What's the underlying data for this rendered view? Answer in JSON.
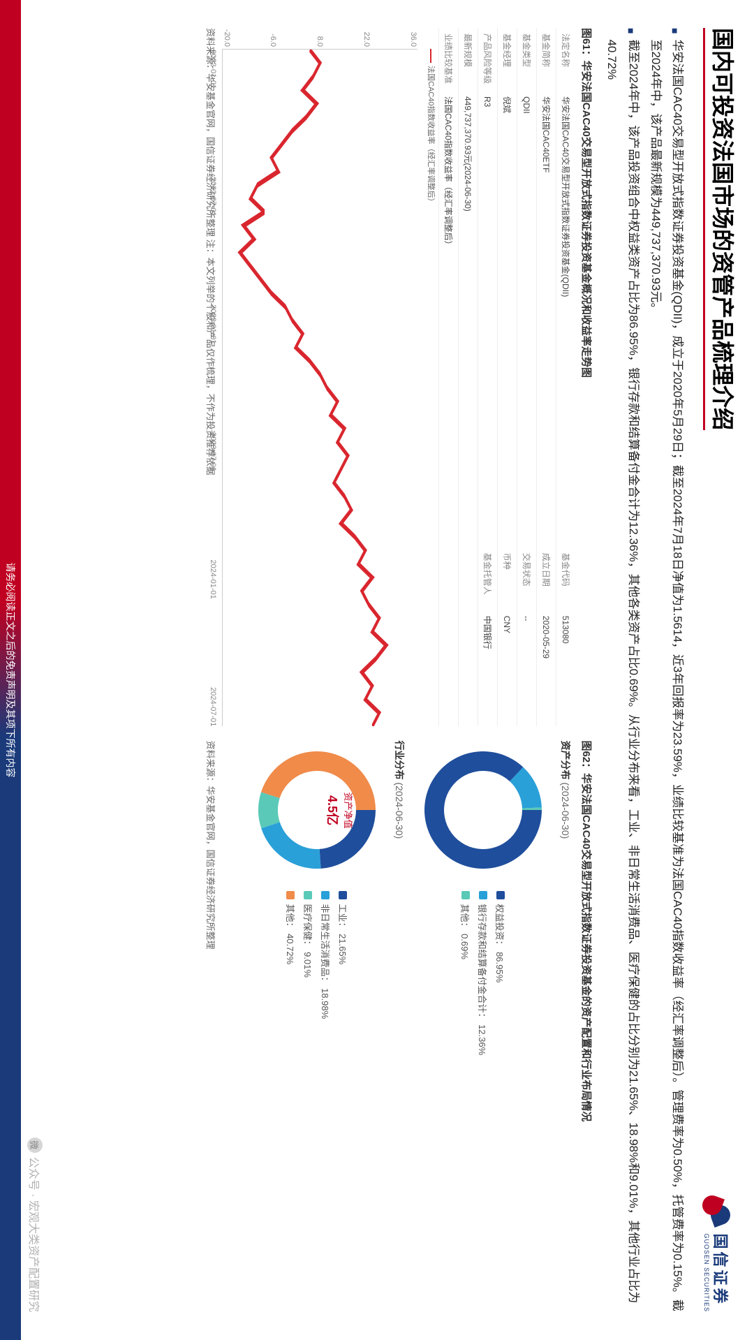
{
  "header": {
    "title": "国内可投资法国市场的资管产品梳理介绍",
    "logo_cn": "国信证券",
    "logo_en": "GUOSEN SECURITIES"
  },
  "bullets": [
    "华安法国CAC40交易型开放式指数证券投资基金(QDII)，成立于2020年5月29日；截至2024年7月18日净值为1.5614，近3年回报率为23.59%，业绩比较基准为法国CAC40指数收益率（经汇率调整后）。管理费率为0.50%，托管费率为0.15%。截至2024年中，该产品最新规模为449,737,370.93元。",
    "截至2024年中，该产品投资组合中权益类资产占比为86.95%，银行存款和结算备付金合计为12.36%，其他各类资产占比0.69%。从行业分布来看，工业、非日常生活消费品、医疗保健的占比分别为21.65%、18.98%和9.01%，其他行业占比为40.72%"
  ],
  "left_panel": {
    "title": "图61：华安法国CAC40交易型开放式指数证券投资基金概况和收益率走势图",
    "table": [
      {
        "l1": "法定名称",
        "v1": "华安法国CAC40交易型开放式指数证券投资基金(QDII)",
        "l2": "基金代码",
        "v2": "513080"
      },
      {
        "l1": "基金简称",
        "v1": "华安法国CAC40ETF",
        "l2": "成立日期",
        "v2": "2020-05-29"
      },
      {
        "l1": "基金类型",
        "v1": "QDII",
        "l2": "交易状态",
        "v2": "--"
      },
      {
        "l1": "基金经理",
        "v1": "倪斌",
        "l2": "币种",
        "v2": "CNY"
      },
      {
        "l1": "产品风险等级",
        "v1": "R3",
        "l2": "基金托管人",
        "v2": "中国银行"
      },
      {
        "l1": "最新规模",
        "v1": "449,737,370.93元(2024-06-30)",
        "l2": "",
        "v2": ""
      },
      {
        "l1": "业绩比较基准",
        "v1": "法国CAC40指数收益率（经汇率调整后）",
        "l2": "",
        "v2": ""
      }
    ],
    "chart": {
      "y_labels": [
        "36.0",
        "22.0",
        "8.0",
        "-6.0",
        "-20.0"
      ],
      "x_labels": [
        "2022-01-01",
        "2022-07-01",
        "2023-01-01",
        "2023-07-01",
        "2024-01-01",
        "2024-07-01"
      ],
      "line_color": "#d9262e",
      "ylim": [
        -20,
        36
      ],
      "points": [
        [
          0,
          5
        ],
        [
          2,
          8
        ],
        [
          4,
          6
        ],
        [
          6,
          3
        ],
        [
          8,
          7
        ],
        [
          10,
          4
        ],
        [
          12,
          0
        ],
        [
          14,
          -3
        ],
        [
          16,
          -6
        ],
        [
          18,
          -4
        ],
        [
          20,
          -10
        ],
        [
          22,
          -12
        ],
        [
          24,
          -8
        ],
        [
          26,
          -14
        ],
        [
          28,
          -11
        ],
        [
          30,
          -15
        ],
        [
          32,
          -12
        ],
        [
          34,
          -9
        ],
        [
          36,
          -6
        ],
        [
          38,
          -2
        ],
        [
          40,
          0
        ],
        [
          42,
          3
        ],
        [
          44,
          1
        ],
        [
          46,
          5
        ],
        [
          48,
          8
        ],
        [
          50,
          10
        ],
        [
          52,
          13
        ],
        [
          54,
          11
        ],
        [
          56,
          15
        ],
        [
          58,
          13
        ],
        [
          60,
          16
        ],
        [
          62,
          14
        ],
        [
          64,
          12
        ],
        [
          66,
          15
        ],
        [
          68,
          17
        ],
        [
          70,
          14
        ],
        [
          72,
          18
        ],
        [
          74,
          21
        ],
        [
          76,
          19
        ],
        [
          78,
          23
        ],
        [
          80,
          20
        ],
        [
          82,
          22
        ],
        [
          84,
          25
        ],
        [
          86,
          23
        ],
        [
          88,
          27
        ],
        [
          90,
          24
        ],
        [
          92,
          20
        ],
        [
          94,
          23
        ],
        [
          96,
          21
        ],
        [
          98,
          25
        ],
        [
          100,
          23
        ]
      ]
    },
    "source": "资料来源：华安基金官网，国信证券经济研究所整理  注：本文列举的个股和产品仅作梳理，不作为投资推荐依据"
  },
  "right_panel": {
    "title": "图62：华安法国CAC40交易型开放式指数证券投资基金的资产配置和行业布局情况",
    "asset_title": "资产分布",
    "asset_date": "(2024-06-30)",
    "asset_center_label": "资产净值",
    "asset_center_value": "4.5亿",
    "asset_slices": [
      {
        "label": "权益投资：",
        "pct": "86.95%",
        "value": 86.95,
        "color": "#1f4e9c"
      },
      {
        "label": "银行存款和结算备付金合计：",
        "pct": "12.36%",
        "value": 12.36,
        "color": "#2aa0d8"
      },
      {
        "label": "其他：",
        "pct": "0.69%",
        "value": 0.69,
        "color": "#5ac9b8"
      }
    ],
    "sector_title": "行业分布",
    "sector_date": "(2024-06-30)",
    "sector_slices": [
      {
        "label": "工业：",
        "pct": "21.65%",
        "value": 21.65,
        "color": "#1f4e9c"
      },
      {
        "label": "非日常生活消费品：",
        "pct": "18.98%",
        "value": 18.98,
        "color": "#2aa0d8"
      },
      {
        "label": "医疗保健：",
        "pct": "9.01%",
        "value": 9.01,
        "color": "#5ac9b8"
      },
      {
        "label": "其他：",
        "pct": "40.72%",
        "value": 40.72,
        "color": "#f08b4a"
      }
    ],
    "source": "资料来源：华安基金官网，国信证券经济研究所整理"
  },
  "footer": "请务必阅读正文之后的免责声明及其项下所有内容",
  "watermark": "公众号 · 宏观大类资产配置研究"
}
